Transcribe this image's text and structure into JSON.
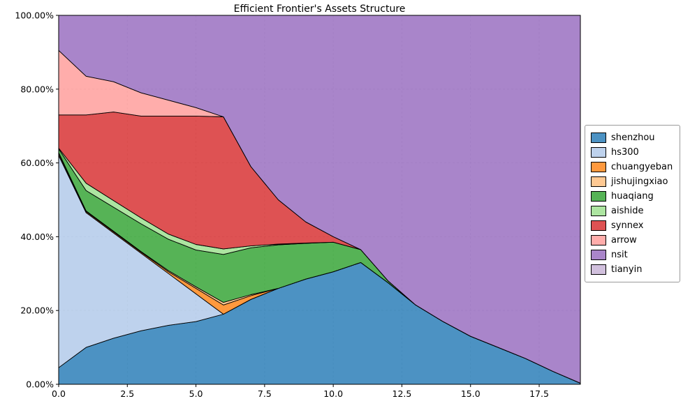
{
  "chart_data": {
    "type": "area",
    "stacked": true,
    "title": "Efficient Frontier's Assets Structure",
    "xlabel": "",
    "ylabel": "",
    "xlim": [
      0,
      19
    ],
    "ylim": [
      0,
      100
    ],
    "grid": true,
    "grid_style": "dashed",
    "legend_position": "right outside, center",
    "value_unit": "percent",
    "x": [
      0,
      1,
      2,
      3,
      4,
      5,
      6,
      7,
      8,
      9,
      10,
      11,
      12,
      13,
      14,
      15,
      16,
      17,
      18,
      19
    ],
    "xticks": {
      "values": [
        0,
        2.5,
        5,
        7.5,
        10,
        12.5,
        15,
        17.5
      ],
      "labels": [
        "0.0",
        "2.5",
        "5.0",
        "7.5",
        "10.0",
        "12.5",
        "15.0",
        "17.5"
      ]
    },
    "yticks": {
      "values": [
        0,
        20,
        40,
        60,
        80,
        100
      ],
      "labels": [
        "0.00%",
        "20.00%",
        "40.00%",
        "60.00%",
        "80.00%",
        "100.00%"
      ]
    },
    "series": [
      {
        "name": "shenzhou",
        "color": "#1f77b4",
        "values": [
          4.5,
          10,
          12.5,
          14.5,
          16,
          17,
          19,
          23,
          26,
          28.5,
          30.5,
          33,
          27.5,
          21.5,
          17,
          13,
          10,
          7,
          3.5,
          0.3
        ]
      },
      {
        "name": "hs300",
        "color": "#aec7e8",
        "values": [
          57.5,
          36.5,
          28.5,
          21,
          14,
          7.5,
          0,
          0,
          0,
          0,
          0,
          0,
          0,
          0,
          0,
          0,
          0,
          0,
          0,
          0
        ]
      },
      {
        "name": "chuangyeban",
        "color": "#ff7f0e",
        "values": [
          0.5,
          0.3,
          0.3,
          0.3,
          0.5,
          1.5,
          2.5,
          1,
          0,
          0,
          0,
          0,
          0,
          0,
          0,
          0,
          0,
          0,
          0,
          0
        ]
      },
      {
        "name": "jishujingxiao",
        "color": "#ffbb78",
        "values": [
          0.3,
          0.2,
          0.2,
          0.2,
          0.3,
          0.4,
          0.7,
          0.3,
          0,
          0,
          0,
          0,
          0,
          0,
          0,
          0,
          0,
          0,
          0,
          0
        ]
      },
      {
        "name": "huaqiang",
        "color": "#2ca02c",
        "values": [
          1.0,
          5.5,
          6.5,
          7.5,
          8.5,
          10,
          13,
          12.7,
          11.8,
          9.7,
          8,
          3.5,
          0.5,
          0,
          0,
          0,
          0,
          0,
          0,
          0
        ]
      },
      {
        "name": "aishide",
        "color": "#98df8a",
        "values": [
          0.2,
          2.0,
          1.8,
          1.6,
          1.4,
          1.5,
          1.5,
          0.5,
          0.2,
          0.1,
          0,
          0,
          0,
          0,
          0,
          0,
          0,
          0,
          0,
          0
        ]
      },
      {
        "name": "synnex",
        "color": "#d62728",
        "values": [
          9.0,
          18.5,
          24,
          27.6,
          32,
          34.8,
          35.8,
          21.5,
          12,
          5.7,
          1.5,
          0,
          0,
          0,
          0,
          0,
          0,
          0,
          0,
          0
        ]
      },
      {
        "name": "arrow",
        "color": "#ff9896",
        "values": [
          17.5,
          10.5,
          8.2,
          6.3,
          4.3,
          2.3,
          0,
          0,
          0,
          0,
          0,
          0,
          0,
          0,
          0,
          0,
          0,
          0,
          0,
          0
        ]
      },
      {
        "name": "nsit",
        "color": "#9467bd",
        "values": [
          9.5,
          16.5,
          18,
          21,
          23,
          25,
          27.5,
          41,
          50,
          56,
          60,
          63.5,
          72,
          78.5,
          83,
          87,
          90,
          93,
          96.5,
          99.7
        ]
      },
      {
        "name": "tianyin",
        "color": "#c5b0d5",
        "values": [
          0,
          0,
          0,
          0,
          0,
          0,
          0,
          0,
          0,
          0,
          0,
          0,
          0,
          0,
          0,
          0,
          0,
          0,
          0,
          0
        ]
      }
    ]
  }
}
